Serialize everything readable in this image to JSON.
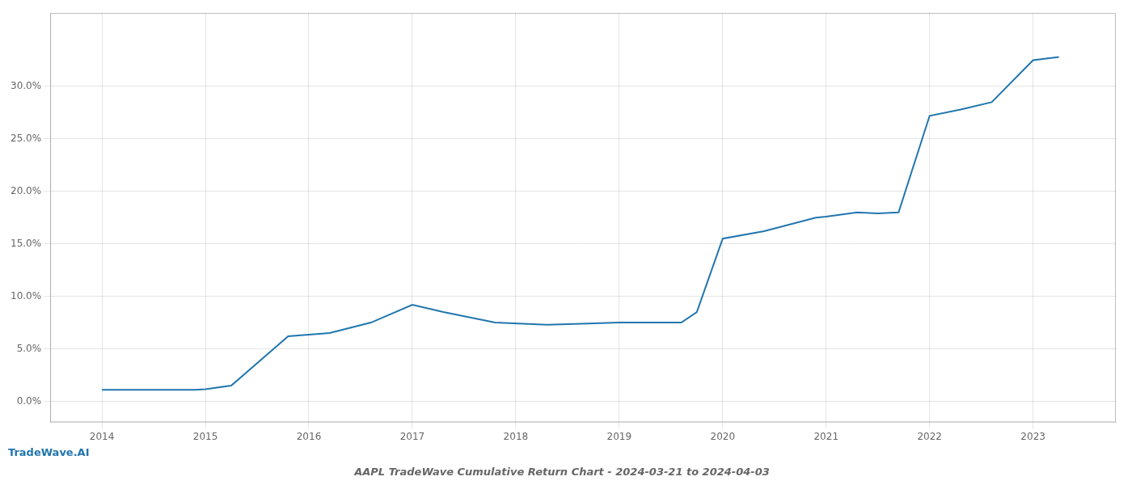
{
  "chart_data": {
    "type": "line",
    "title": "AAPL TradeWave Cumulative Return Chart - 2024-03-21 to 2024-04-03",
    "annotations": [
      "TradeWave.AI"
    ],
    "x": [
      2014.0,
      2014.9,
      2015.0,
      2015.25,
      2015.8,
      2016.2,
      2016.6,
      2017.0,
      2017.3,
      2017.8,
      2018.3,
      2018.7,
      2019.0,
      2019.25,
      2019.6,
      2019.75,
      2020.0,
      2020.4,
      2020.9,
      2021.0,
      2021.3,
      2021.5,
      2021.7,
      2022.0,
      2022.3,
      2022.6,
      2023.0,
      2023.25
    ],
    "values": [
      1.1,
      1.1,
      1.15,
      1.5,
      6.2,
      6.5,
      7.5,
      9.2,
      8.5,
      7.5,
      7.3,
      7.4,
      7.5,
      7.5,
      7.5,
      8.5,
      15.5,
      16.2,
      17.5,
      17.6,
      18.0,
      17.9,
      18.0,
      27.2,
      27.8,
      28.5,
      32.5,
      32.8
    ],
    "color": "#2176ae",
    "xlim": [
      2013.5,
      2023.8
    ],
    "ylim": [
      -2.0,
      37
    ],
    "xticks": [
      2014,
      2015,
      2016,
      2017,
      2018,
      2019,
      2020,
      2021,
      2022,
      2023
    ],
    "yticks": [
      {
        "value": 0.0,
        "label": "0.0%"
      },
      {
        "value": 5.0,
        "label": "5.0%"
      },
      {
        "value": 10.0,
        "label": "10.0%"
      },
      {
        "value": 15.0,
        "label": "15.0%"
      },
      {
        "value": 20.0,
        "label": "20.0%"
      },
      {
        "value": 25.0,
        "label": "25.0%"
      },
      {
        "value": 30.0,
        "label": "30.0%"
      }
    ],
    "grid": true
  }
}
